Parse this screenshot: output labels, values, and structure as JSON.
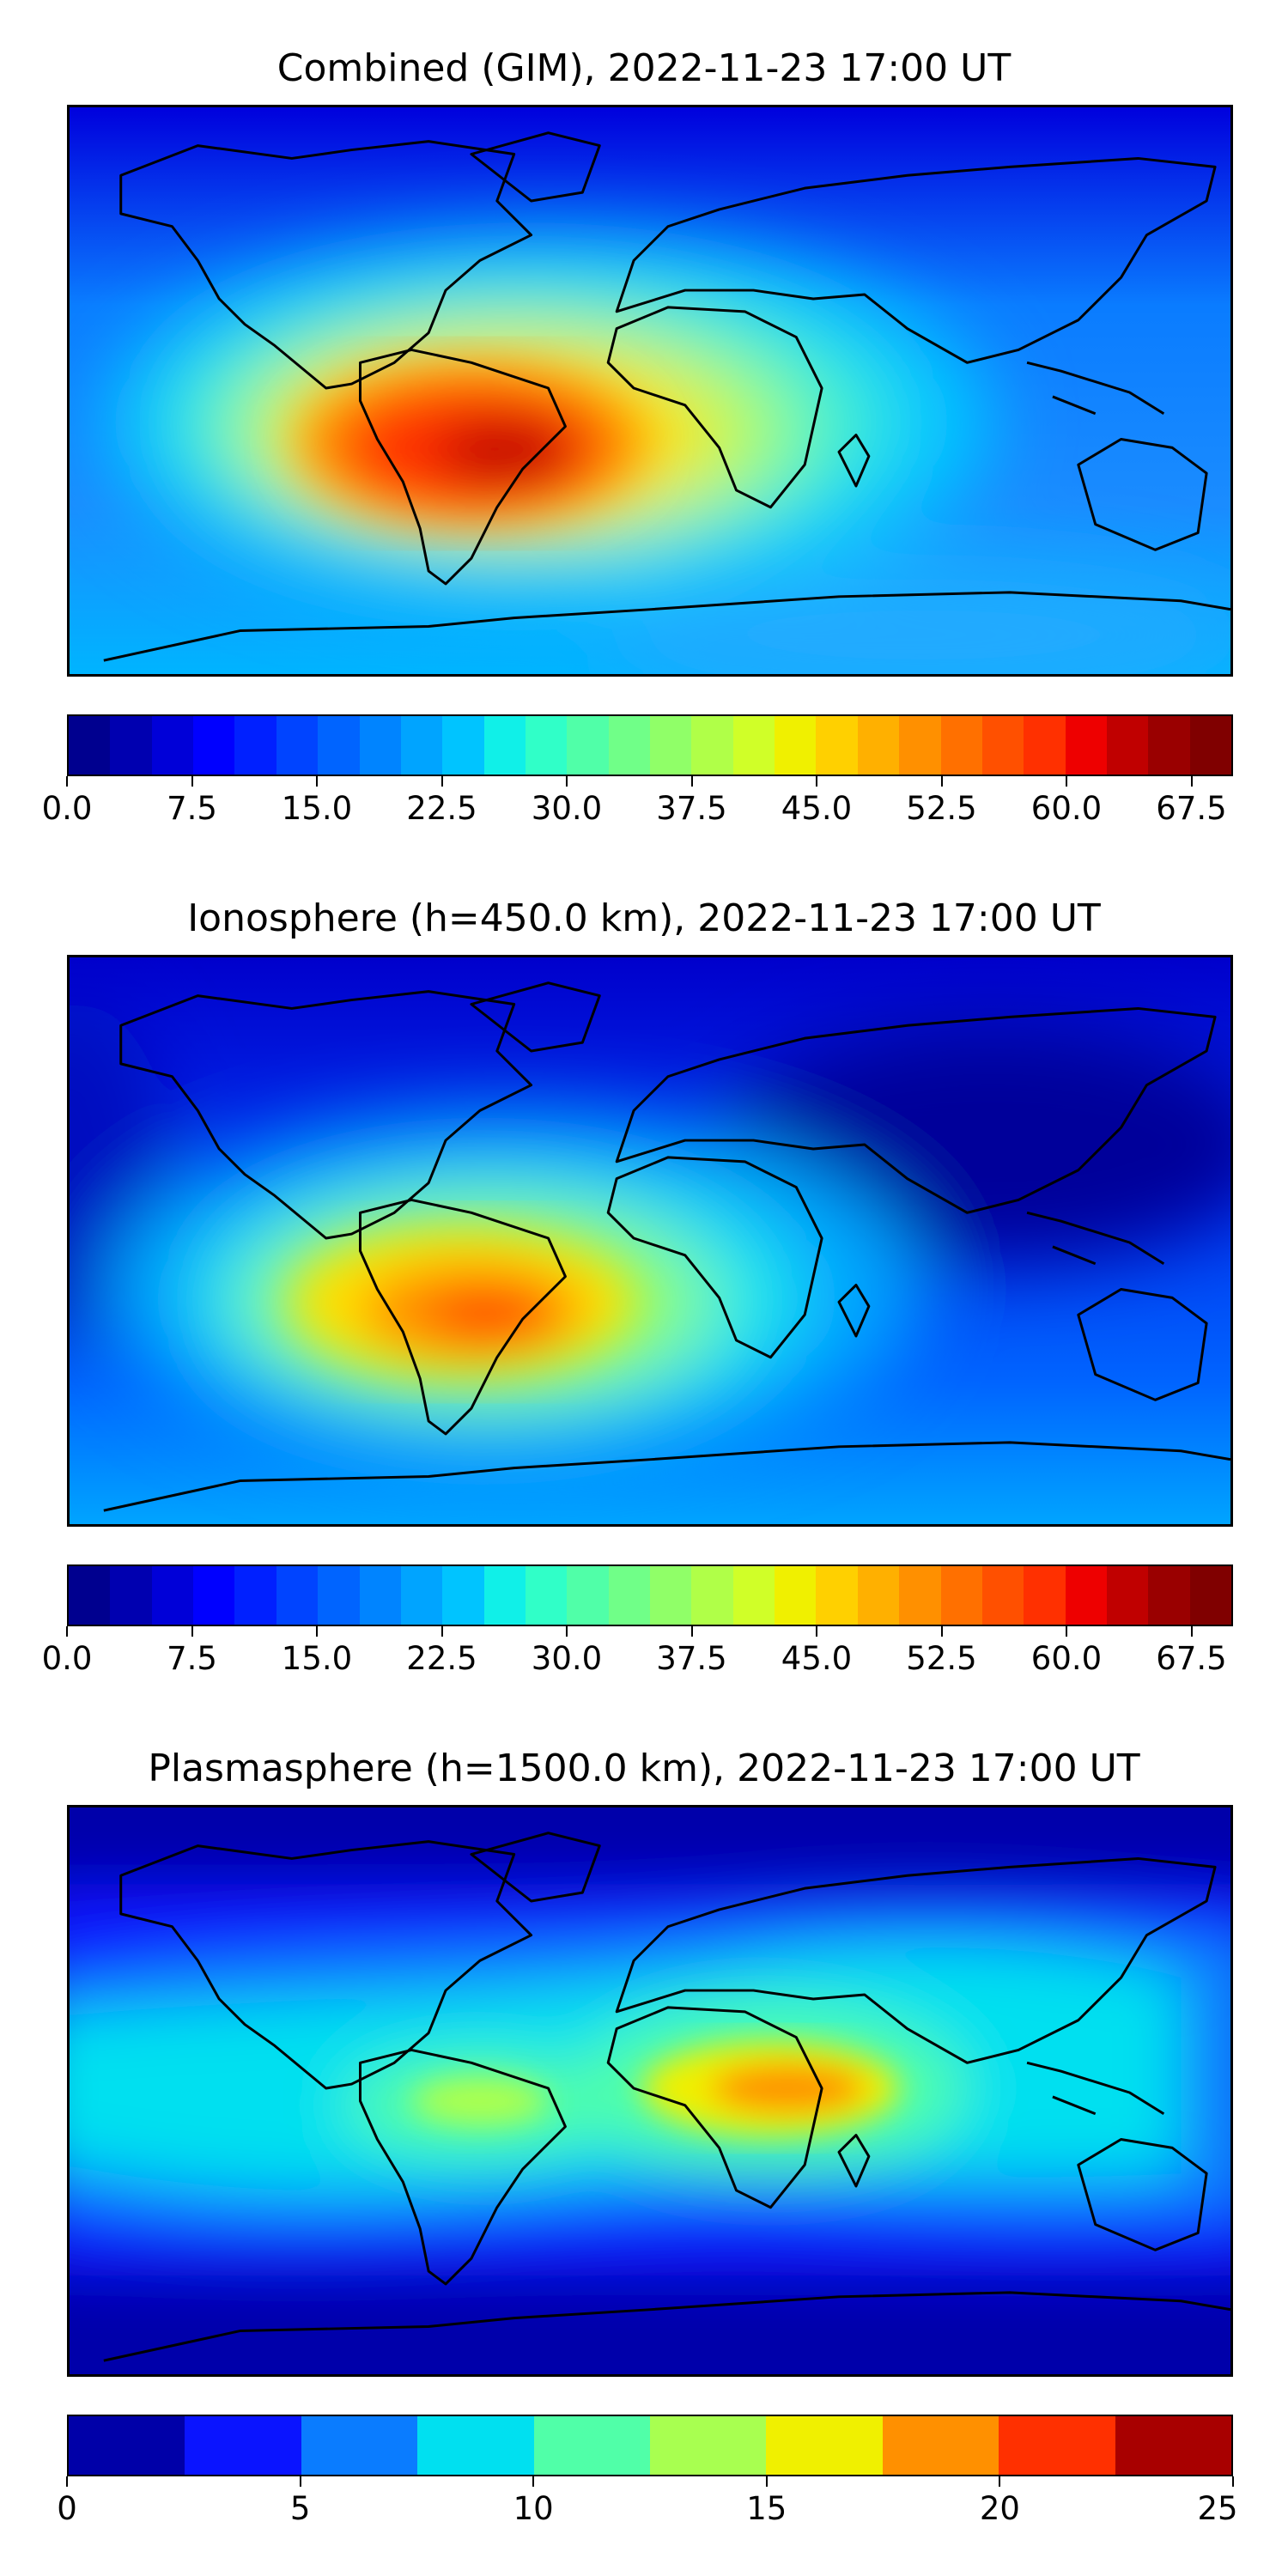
{
  "panels": [
    {
      "title": "Combined (GIM), 2022-11-23 17:00 UT",
      "colorbar": {
        "ticks": [
          "0.0",
          "7.5",
          "15.0",
          "22.5",
          "30.0",
          "37.5",
          "45.0",
          "52.5",
          "60.0",
          "67.5"
        ],
        "min": 0,
        "max": 70,
        "step": 2.5
      }
    },
    {
      "title": "Ionosphere  (h=450.0 km), 2022-11-23 17:00 UT",
      "colorbar": {
        "ticks": [
          "0.0",
          "7.5",
          "15.0",
          "22.5",
          "30.0",
          "37.5",
          "45.0",
          "52.5",
          "60.0",
          "67.5"
        ],
        "min": 0,
        "max": 70,
        "step": 2.5
      }
    },
    {
      "title": "Plasmasphere (h=1500.0 km), 2022-11-23 17:00 UT",
      "colorbar": {
        "ticks": [
          "0",
          "5",
          "10",
          "15",
          "20",
          "25"
        ],
        "min": 0,
        "max": 25,
        "step": 2.5
      }
    }
  ]
}
